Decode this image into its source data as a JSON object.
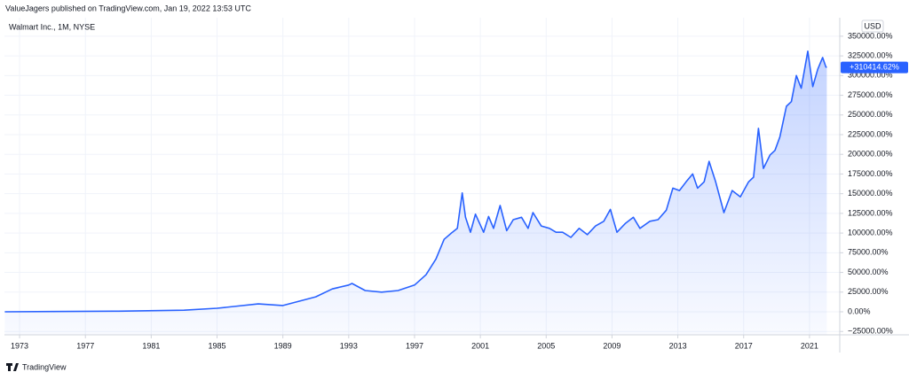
{
  "header": {
    "published": "ValueJagers published on TradingView.com, Jan 19, 2022 13:53 UTC"
  },
  "chart_data": {
    "type": "area",
    "title": "Walmart Inc., 1M, NYSE",
    "currency": "USD",
    "color": "#2962ff",
    "grid": true,
    "x": [
      1972.1,
      1975,
      1979,
      1983,
      1985,
      1987.5,
      1989,
      1990,
      1991,
      1992,
      1993,
      1993.2,
      1994,
      1995,
      1996,
      1997,
      1997.7,
      1998.3,
      1998.8,
      1999.3,
      1999.6,
      1999.9,
      2000.1,
      2000.4,
      2000.7,
      2001.2,
      2001.5,
      2001.8,
      2002.2,
      2002.6,
      2003,
      2003.5,
      2003.9,
      2004.2,
      2004.7,
      2005.2,
      2005.6,
      2006,
      2006.5,
      2007,
      2007.5,
      2008,
      2008.5,
      2008.9,
      2009.3,
      2009.8,
      2010.3,
      2010.7,
      2011.3,
      2011.8,
      2012.3,
      2012.7,
      2013.1,
      2013.5,
      2013.9,
      2014.2,
      2014.6,
      2014.9,
      2015.3,
      2015.8,
      2016.3,
      2016.8,
      2017.3,
      2017.6,
      2017.9,
      2018.2,
      2018.6,
      2018.9,
      2019.2,
      2019.6,
      2019.9,
      2020.2,
      2020.5,
      2020.9,
      2021.2,
      2021.5,
      2021.8,
      2022,
      2022.05
    ],
    "values": [
      0,
      300,
      800,
      2000,
      4500,
      10000,
      8000,
      13500,
      19000,
      29000,
      34000,
      36000,
      27000,
      25000,
      27000,
      34000,
      47000,
      67000,
      92000,
      101000,
      106000,
      151000,
      120000,
      101000,
      124000,
      101000,
      121000,
      106000,
      135000,
      103000,
      117000,
      120000,
      106000,
      126000,
      109000,
      106000,
      101000,
      101000,
      94500,
      106000,
      98000,
      109000,
      115000,
      130000,
      101000,
      112000,
      120000,
      106000,
      115000,
      117000,
      129000,
      157000,
      154000,
      165000,
      175000,
      157000,
      165000,
      191000,
      165000,
      126000,
      154000,
      146000,
      165000,
      171000,
      233000,
      182000,
      199000,
      205000,
      222000,
      261000,
      267000,
      300000,
      284000,
      331000,
      286000,
      308000,
      323000,
      311000,
      310414.62
    ],
    "last_label": "+310414.62%",
    "xlim": [
      1972.08,
      2022.84
    ],
    "ylim": [
      -29250,
      373500
    ],
    "xticks": [
      1973,
      1977,
      1981,
      1985,
      1989,
      1993,
      1997,
      2001,
      2005,
      2009,
      2013,
      2017,
      2021
    ],
    "yticks": [
      {
        "value": -25000,
        "label": "−25000.00%"
      },
      {
        "value": 0,
        "label": "0.00%"
      },
      {
        "value": 25000,
        "label": "25000.00%"
      },
      {
        "value": 50000,
        "label": "50000.00%"
      },
      {
        "value": 75000,
        "label": "75000.00%"
      },
      {
        "value": 100000,
        "label": "100000.00%"
      },
      {
        "value": 125000,
        "label": "125000.00%"
      },
      {
        "value": 150000,
        "label": "150000.00%"
      },
      {
        "value": 175000,
        "label": "175000.00%"
      },
      {
        "value": 200000,
        "label": "200000.00%"
      },
      {
        "value": 225000,
        "label": "225000.00%"
      },
      {
        "value": 250000,
        "label": "250000.00%"
      },
      {
        "value": 275000,
        "label": "275000.00%"
      },
      {
        "value": 300000,
        "label": "300000.00%"
      },
      {
        "value": 325000,
        "label": "325000.00%"
      },
      {
        "value": 350000,
        "label": "350000.00%"
      }
    ]
  },
  "footer": {
    "brand": "TradingView"
  }
}
